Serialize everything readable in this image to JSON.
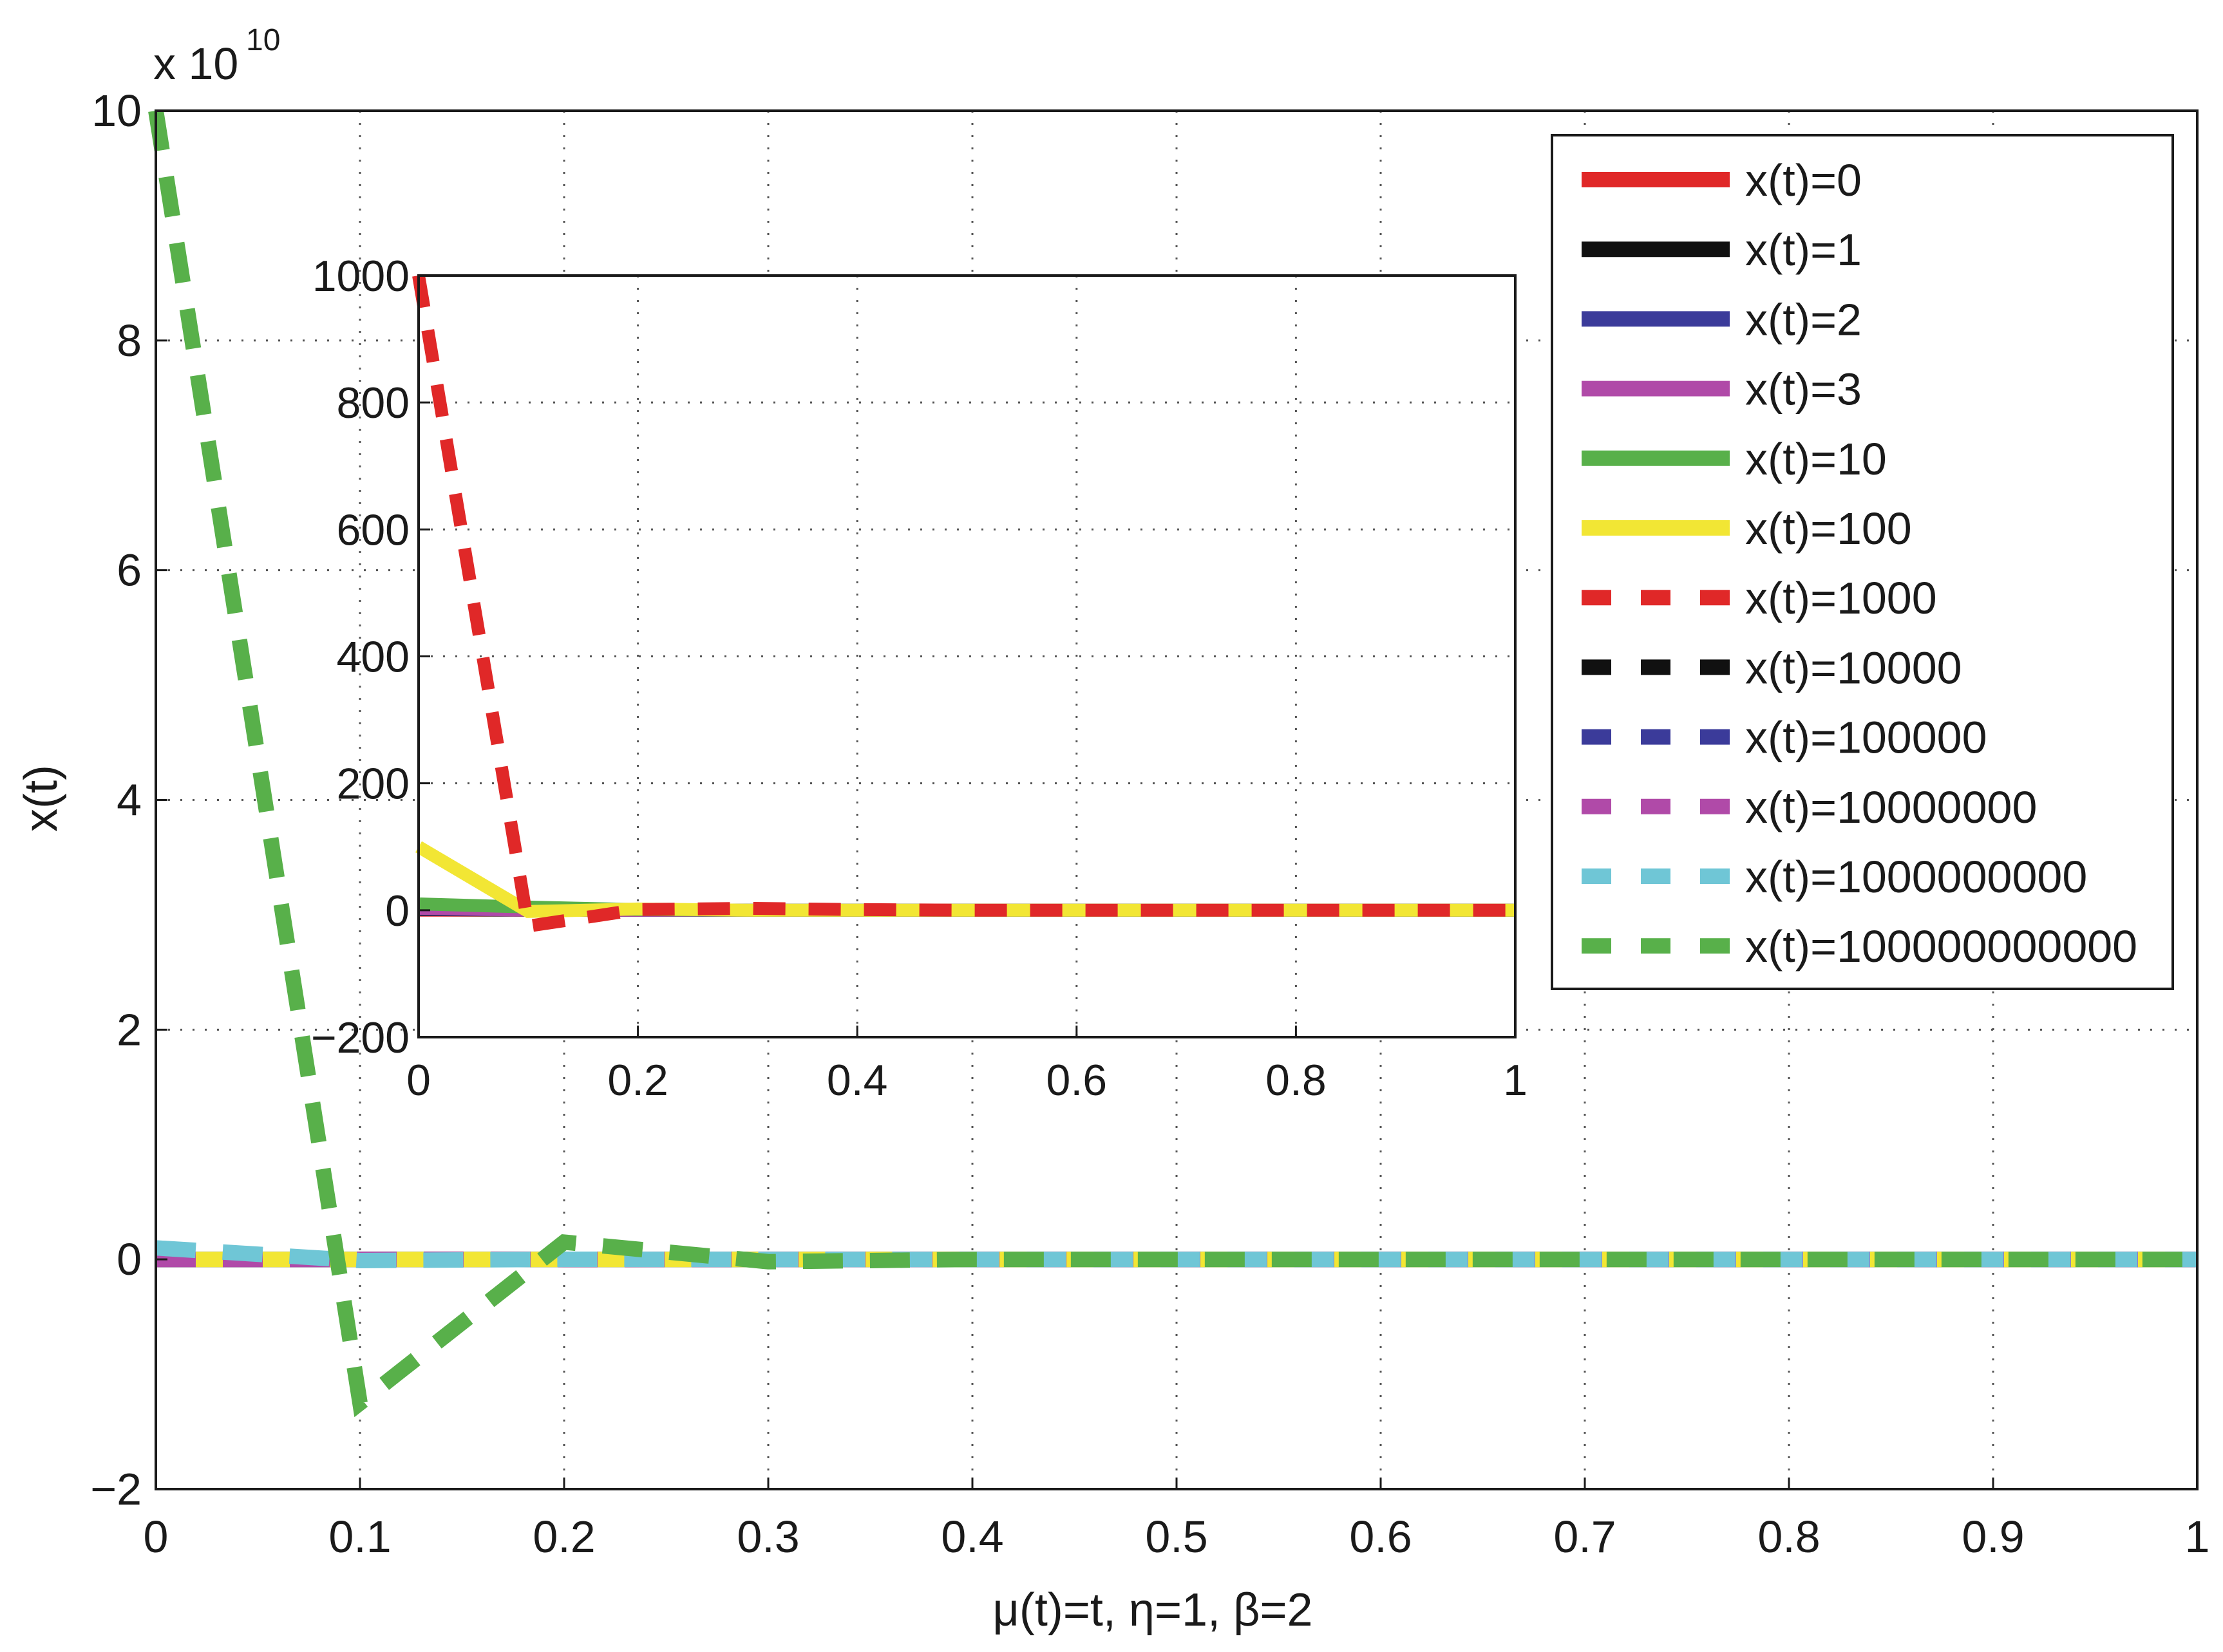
{
  "chart_data": [
    {
      "type": "line",
      "role": "main",
      "xlabel": "μ(t)=t, η=1, β=2",
      "ylabel": "x(t)",
      "y_multiplier": "x 10",
      "y_multiplier_exp": "10",
      "xlim": [
        0,
        1
      ],
      "ylim": [
        -2,
        10
      ],
      "x_ticks": [
        0,
        0.1,
        0.2,
        0.3,
        0.4,
        0.5,
        0.6,
        0.7,
        0.8,
        0.9,
        1
      ],
      "x_tick_labels": [
        "0",
        "0.1",
        "0.2",
        "0.3",
        "0.4",
        "0.5",
        "0.6",
        "0.7",
        "0.8",
        "0.9",
        "1"
      ],
      "y_ticks": [
        -2,
        0,
        2,
        4,
        6,
        8,
        10
      ],
      "y_tick_labels": [
        "−2",
        "0",
        "2",
        "4",
        "6",
        "8",
        "10"
      ],
      "grid": true,
      "legend_position": "top-right",
      "x": [
        0,
        0.1,
        0.2,
        0.3,
        0.4,
        0.5,
        0.6,
        0.7,
        0.8,
        0.9,
        1
      ],
      "series": [
        {
          "name": "x(t)=0",
          "color": "#e02828",
          "dashed": false,
          "values": [
            0,
            0,
            0,
            0,
            0,
            0,
            0,
            0,
            0,
            0,
            0
          ]
        },
        {
          "name": "x(t)=1",
          "color": "#111111",
          "dashed": false,
          "values": [
            0,
            0,
            0,
            0,
            0,
            0,
            0,
            0,
            0,
            0,
            0
          ]
        },
        {
          "name": "x(t)=2",
          "color": "#3b3b9a",
          "dashed": false,
          "values": [
            0,
            0,
            0,
            0,
            0,
            0,
            0,
            0,
            0,
            0,
            0
          ]
        },
        {
          "name": "x(t)=3",
          "color": "#b04aa8",
          "dashed": false,
          "values": [
            0,
            0,
            0,
            0,
            0,
            0,
            0,
            0,
            0,
            0,
            0
          ]
        },
        {
          "name": "x(t)=10",
          "color": "#58b04a",
          "dashed": false,
          "values": [
            0,
            0,
            0,
            0,
            0,
            0,
            0,
            0,
            0,
            0,
            0
          ]
        },
        {
          "name": "x(t)=100",
          "color": "#f2e634",
          "dashed": false,
          "values": [
            0,
            0,
            0,
            0,
            0,
            0,
            0,
            0,
            0,
            0,
            0
          ]
        },
        {
          "name": "x(t)=1000",
          "color": "#e02828",
          "dashed": true,
          "values": [
            0,
            0,
            0,
            0,
            0,
            0,
            0,
            0,
            0,
            0,
            0
          ]
        },
        {
          "name": "x(t)=10000",
          "color": "#111111",
          "dashed": true,
          "values": [
            0,
            0,
            0,
            0,
            0,
            0,
            0,
            0,
            0,
            0,
            0
          ]
        },
        {
          "name": "x(t)=100000",
          "color": "#3b3b9a",
          "dashed": true,
          "values": [
            0,
            0,
            0,
            0,
            0,
            0,
            0,
            0,
            0,
            0,
            0
          ]
        },
        {
          "name": "x(t)=10000000",
          "color": "#b04aa8",
          "dashed": true,
          "values": [
            0,
            0,
            0,
            0,
            0,
            0,
            0,
            0,
            0,
            0,
            0
          ]
        },
        {
          "name": "x(t)=1000000000",
          "color": "#6fc6d6",
          "dashed": true,
          "values": [
            0.1,
            -0.01,
            0.001,
            0,
            0,
            0,
            0,
            0,
            0,
            0,
            0
          ]
        },
        {
          "name": "x(t)=100000000000",
          "color": "#58b04a",
          "dashed": true,
          "values": [
            10,
            -1.25,
            0.15,
            -0.02,
            0,
            0,
            0,
            0,
            0,
            0,
            0
          ]
        }
      ]
    },
    {
      "type": "line",
      "role": "inset",
      "xlim": [
        0,
        1
      ],
      "ylim": [
        -200,
        1000
      ],
      "x_ticks": [
        0,
        0.2,
        0.4,
        0.6,
        0.8,
        1
      ],
      "x_tick_labels": [
        "0",
        "0.2",
        "0.4",
        "0.6",
        "0.8",
        "1"
      ],
      "y_ticks": [
        -200,
        0,
        200,
        400,
        600,
        800,
        1000
      ],
      "y_tick_labels": [
        "−200",
        "0",
        "200",
        "400",
        "600",
        "800",
        "1000"
      ],
      "grid": true,
      "x": [
        0,
        0.1,
        0.2,
        0.3,
        0.4,
        0.5,
        0.6,
        0.7,
        0.8,
        0.9,
        1
      ],
      "series": [
        {
          "color": "#e02828",
          "dashed": false,
          "values": [
            0,
            0,
            0,
            0,
            0,
            0,
            0,
            0,
            0,
            0,
            0
          ]
        },
        {
          "color": "#111111",
          "dashed": false,
          "values": [
            1,
            0,
            0,
            0,
            0,
            0,
            0,
            0,
            0,
            0,
            0
          ]
        },
        {
          "color": "#3b3b9a",
          "dashed": false,
          "values": [
            2,
            0,
            0,
            0,
            0,
            0,
            0,
            0,
            0,
            0,
            0
          ]
        },
        {
          "color": "#b04aa8",
          "dashed": false,
          "values": [
            3,
            0,
            0,
            0,
            0,
            0,
            0,
            0,
            0,
            0,
            0
          ]
        },
        {
          "color": "#58b04a",
          "dashed": false,
          "values": [
            10,
            5,
            1,
            0,
            0,
            0,
            0,
            0,
            0,
            0,
            0
          ]
        },
        {
          "color": "#f2e634",
          "dashed": false,
          "values": [
            100,
            -2,
            2,
            0,
            0,
            0,
            0,
            0,
            0,
            0,
            0
          ]
        },
        {
          "color": "#e02828",
          "dashed": true,
          "values": [
            1000,
            -25,
            1,
            3,
            1,
            0,
            0,
            0,
            0,
            0,
            0
          ]
        }
      ]
    }
  ]
}
